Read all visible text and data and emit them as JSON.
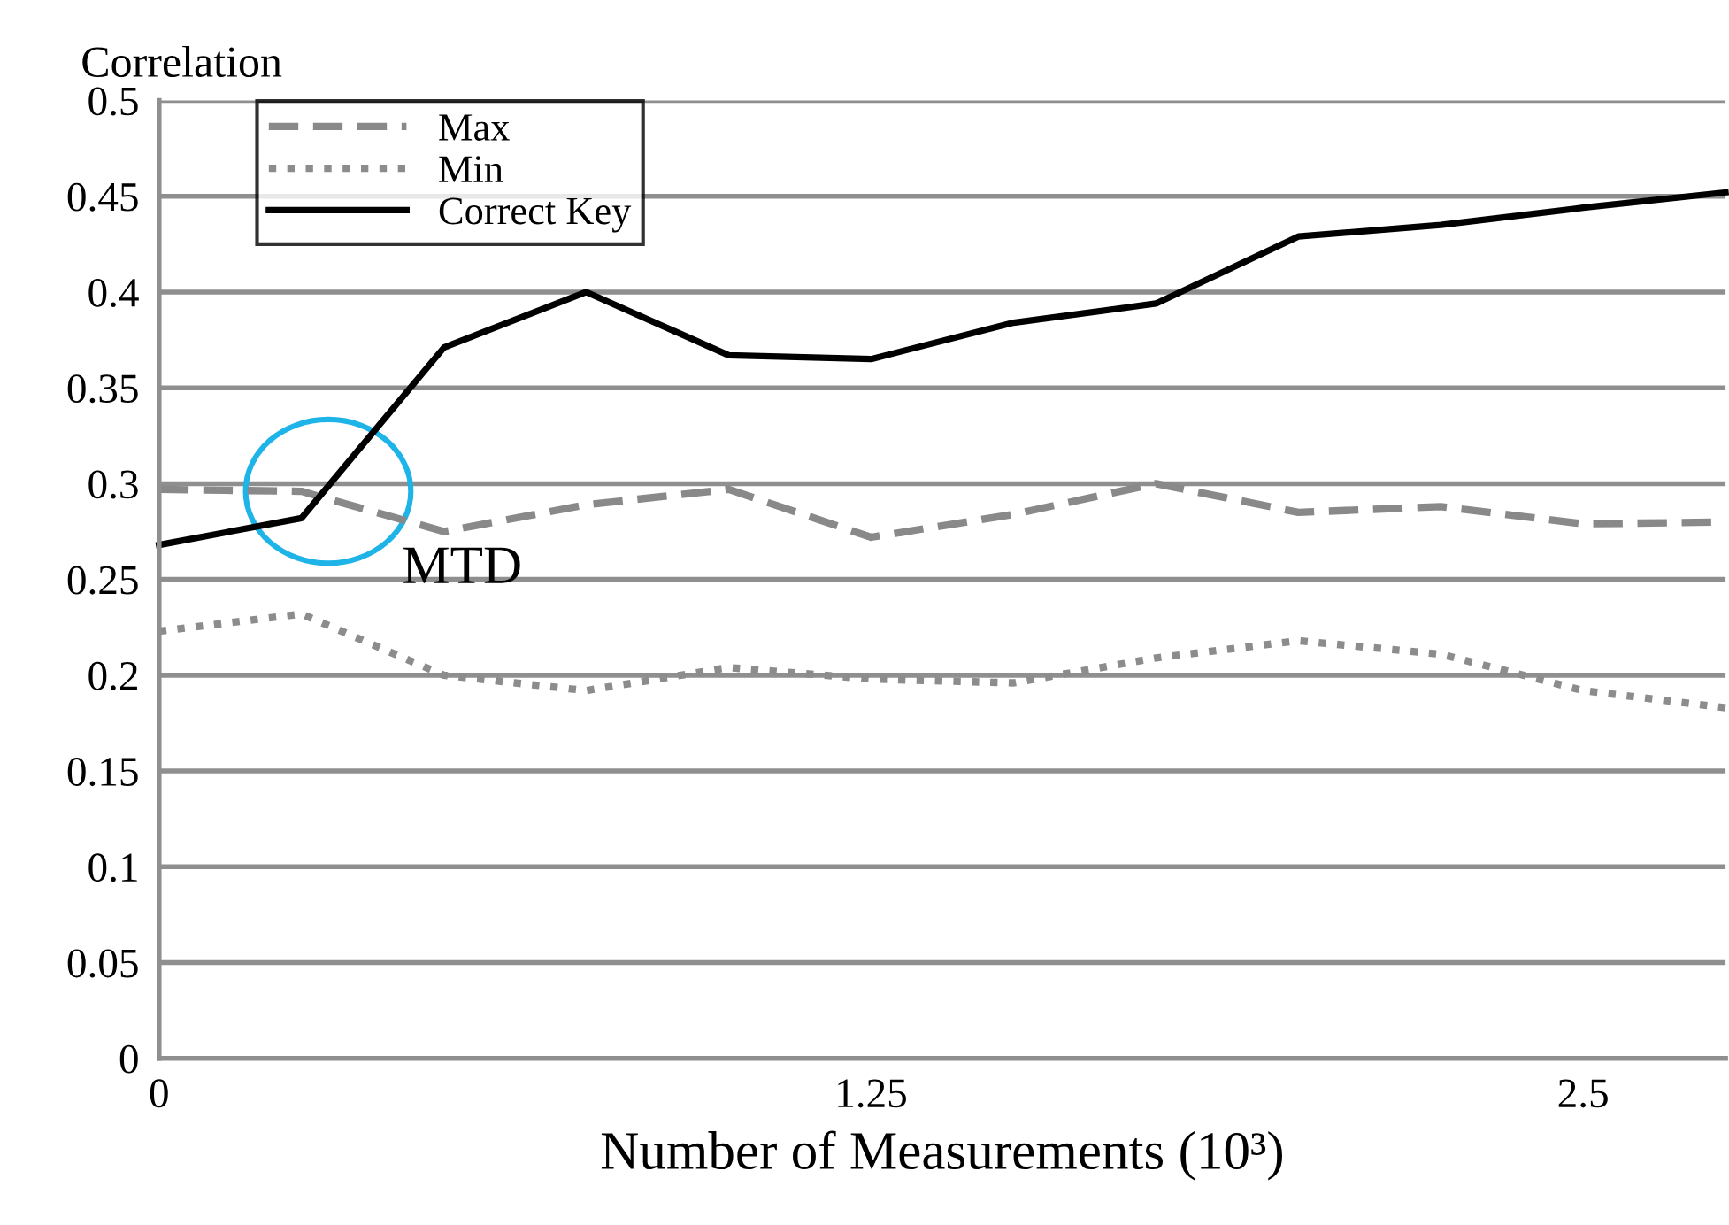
{
  "chart_data": {
    "type": "line",
    "xlabel": "Number of Measurements (10³)",
    "ylabel": "Correlation",
    "x": [
      0,
      0.25,
      0.5,
      0.75,
      1.0,
      1.25,
      1.5,
      1.75,
      2.0,
      2.25,
      2.5,
      2.75
    ],
    "series": [
      {
        "name": "Max",
        "color": "#898989",
        "line_style": "dashed",
        "values": [
          0.297,
          0.296,
          0.275,
          0.289,
          0.297,
          0.272,
          0.284,
          0.3,
          0.285,
          0.288,
          0.279,
          0.28
        ]
      },
      {
        "name": "Min",
        "color": "#8c8c8c",
        "line_style": "dotted",
        "values": [
          0.223,
          0.232,
          0.2,
          0.192,
          0.204,
          0.198,
          0.196,
          0.209,
          0.218,
          0.211,
          0.192,
          0.183
        ]
      },
      {
        "name": "Correct Key",
        "color": "#000000",
        "line_style": "solid",
        "values": [
          0.268,
          0.282,
          0.371,
          0.4,
          0.367,
          0.365,
          0.384,
          0.394,
          0.429,
          0.435,
          0.444,
          0.452
        ]
      }
    ],
    "xlim": [
      0,
      2.75
    ],
    "xticks": [
      0,
      1.25,
      2.5
    ],
    "ylim": [
      0,
      0.5
    ],
    "yticks": [
      0,
      0.05,
      0.1,
      0.15,
      0.2,
      0.25,
      0.3,
      0.35,
      0.4,
      0.45,
      0.5
    ],
    "grid": "y",
    "legend": "top left",
    "marker": "none",
    "annotations": [
      {
        "text": "MTD",
        "x": 0.297,
        "y": 0.296
      }
    ]
  }
}
